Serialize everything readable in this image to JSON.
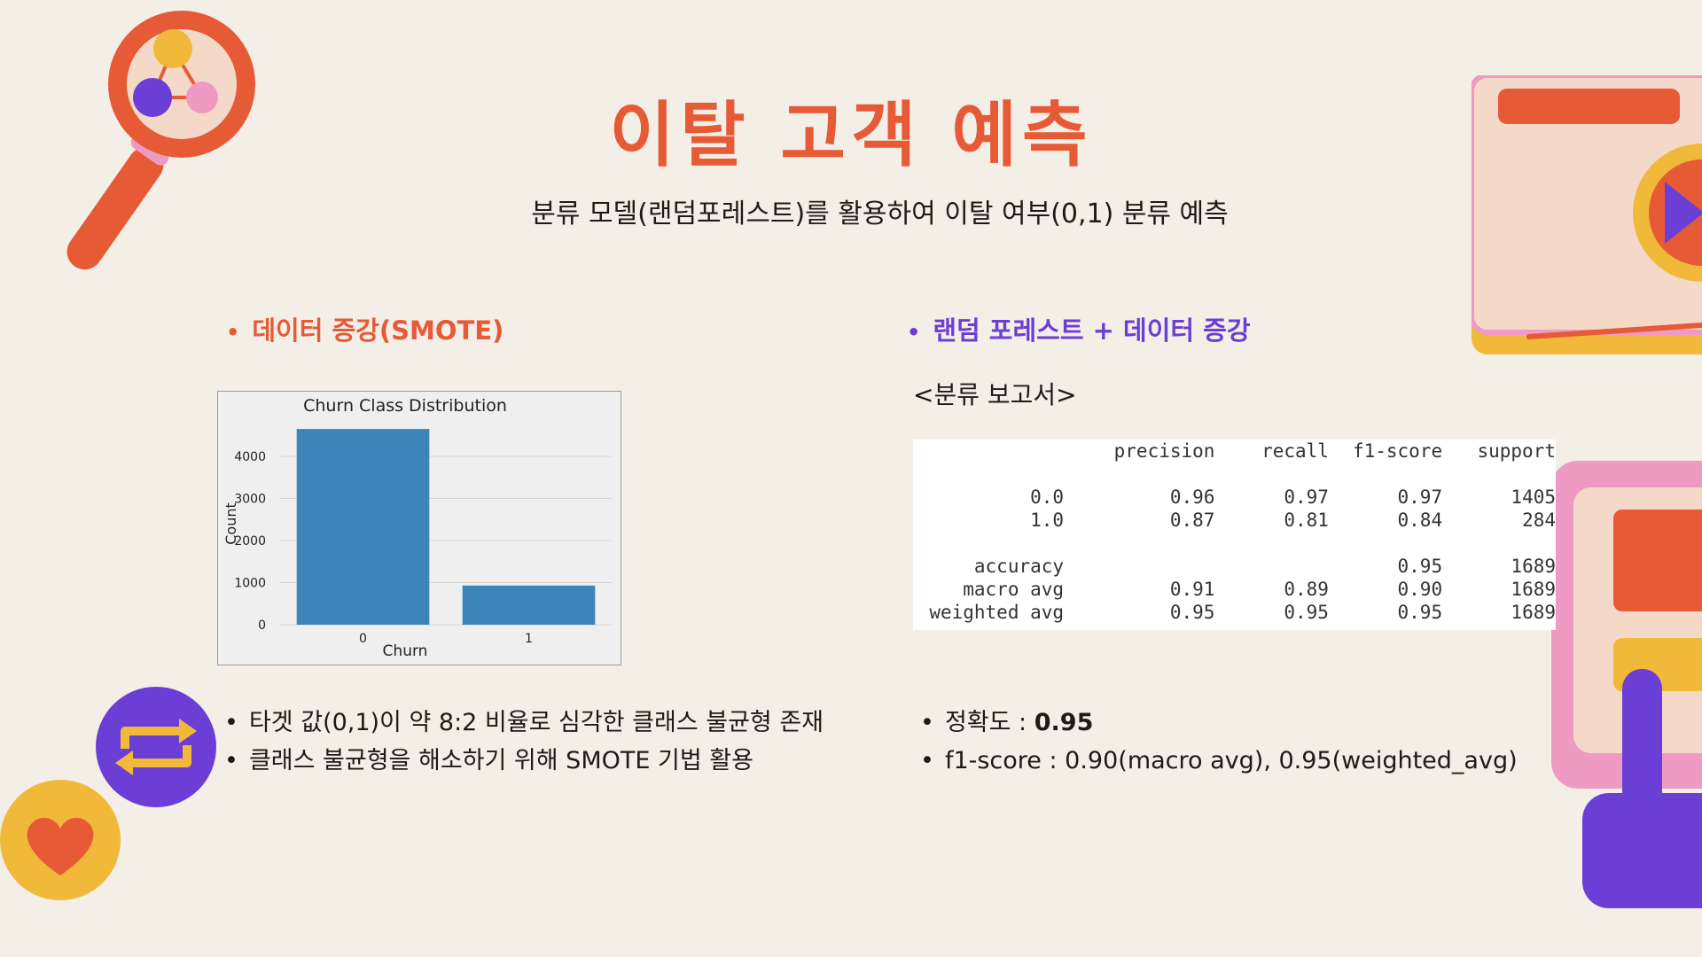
{
  "title": "이탈 고객 예측",
  "subtitle": "분류 모델(랜덤포레스트)를 활용하여 이탈 여부(0,1) 분류 예측",
  "left": {
    "heading": "데이터 증강(SMOTE)",
    "bullets": [
      "타겟 값(0,1)이 약 8:2 비율로 심각한 클래스 불균형 존재",
      "클래스 불균형을 해소하기 위해 SMOTE 기법 활용"
    ]
  },
  "right": {
    "heading": "랜덤 포레스트 + 데이터 증강",
    "report_label": "<분류 보고서>",
    "bullets": {
      "accuracy_label": "정확도 : ",
      "accuracy_value": "0.95",
      "f1": "f1-score : 0.90(macro avg), 0.95(weighted_avg)"
    }
  },
  "report": {
    "headers": [
      "",
      "precision",
      "recall",
      "f1-score",
      "support"
    ],
    "rows": [
      [
        "0.0",
        "0.96",
        "0.97",
        "0.97",
        "1405"
      ],
      [
        "1.0",
        "0.87",
        "0.81",
        "0.84",
        "284"
      ],
      [
        "accuracy",
        "",
        "",
        "0.95",
        "1689"
      ],
      [
        "macro avg",
        "0.91",
        "0.89",
        "0.90",
        "1689"
      ],
      [
        "weighted avg",
        "0.95",
        "0.95",
        "0.95",
        "1689"
      ]
    ]
  },
  "chart_data": {
    "type": "bar",
    "title": "Churn Class Distribution",
    "xlabel": "Churn",
    "ylabel": "Count",
    "categories": [
      "0",
      "1"
    ],
    "values": [
      4650,
      930
    ],
    "ylim": [
      0,
      4800
    ],
    "yticks": [
      0,
      1000,
      2000,
      3000,
      4000
    ],
    "grid": true,
    "bar_color": "#3d84b8"
  },
  "colors": {
    "background": "#f3efe7",
    "accent_orange": "#e65a35",
    "accent_purple": "#6b3ed6",
    "yellow": "#f0b93a",
    "pink": "#ef9ac3"
  },
  "decor": {
    "magnifier": "magnifier-molecule-icon",
    "refresh": "refresh-icon",
    "heart": "heart-icon",
    "video": "video-player-icon",
    "hand": "pointing-hand-icon"
  }
}
